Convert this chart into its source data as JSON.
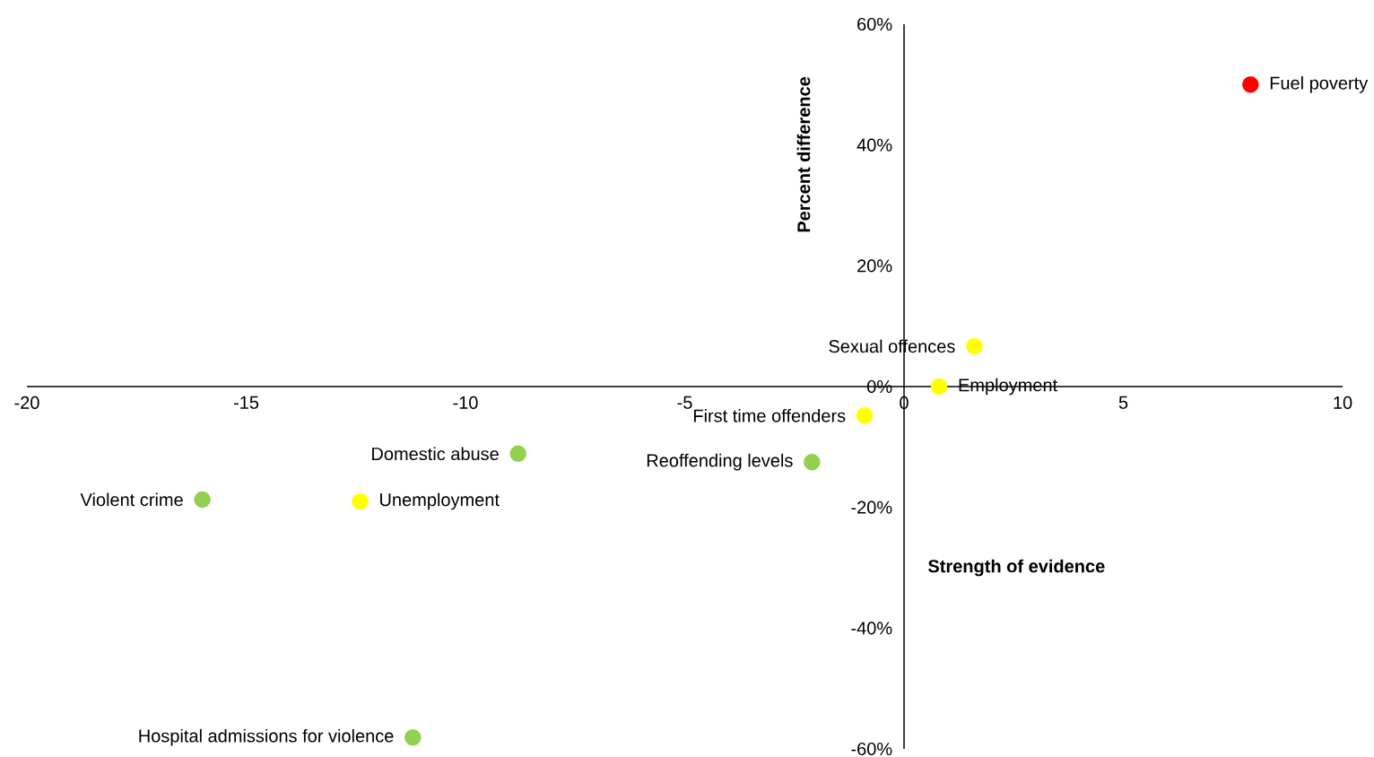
{
  "chart_data": {
    "type": "scatter",
    "xlabel": "Strength of evidence",
    "ylabel": "Percent difference",
    "marker": "circle",
    "xlim": [
      -20,
      10
    ],
    "xticks": [
      -20,
      -15,
      -10,
      -5,
      0,
      5,
      10
    ],
    "ylim": [
      -60,
      60
    ],
    "yticks": [
      {
        "value": -60,
        "label": "-60%"
      },
      {
        "value": -40,
        "label": "-40%"
      },
      {
        "value": -20,
        "label": "-20%"
      },
      {
        "value": 0,
        "label": "0%"
      },
      {
        "value": 20,
        "label": "20%"
      },
      {
        "value": 40,
        "label": "40%"
      },
      {
        "value": 60,
        "label": "60%"
      }
    ],
    "series": [
      {
        "color": "#ff0000",
        "x": [
          7.9
        ],
        "values": [
          50
        ]
      },
      {
        "color": "#ffff00",
        "x": [
          1.6,
          0.8,
          -0.9,
          -12.4
        ],
        "values": [
          6.7,
          0,
          -4.8,
          -19
        ]
      },
      {
        "color": "#92d050",
        "x": [
          -2.1,
          -8.8,
          -16,
          -11.2
        ],
        "values": [
          -12.5,
          -11.1,
          -18.7,
          -58.1
        ]
      }
    ],
    "annotations": [
      {
        "text": "Fuel poverty",
        "x": 7.9,
        "y": 50
      },
      {
        "text": "Sexual offences",
        "x": 1.6,
        "y": 6.7
      },
      {
        "text": "Employment",
        "x": 0.8,
        "y": 0
      },
      {
        "text": "First time offenders",
        "x": -0.9,
        "y": -4.8
      },
      {
        "text": "Unemployment",
        "x": -12.4,
        "y": -19
      },
      {
        "text": "Reoffending levels",
        "x": -2.1,
        "y": -12.5
      },
      {
        "text": "Domestic abuse",
        "x": -8.8,
        "y": -11.1
      },
      {
        "text": "Violent crime",
        "x": -16,
        "y": -18.7
      },
      {
        "text": "Hospital admissions for violence",
        "x": -11.2,
        "y": -58.1
      }
    ]
  }
}
